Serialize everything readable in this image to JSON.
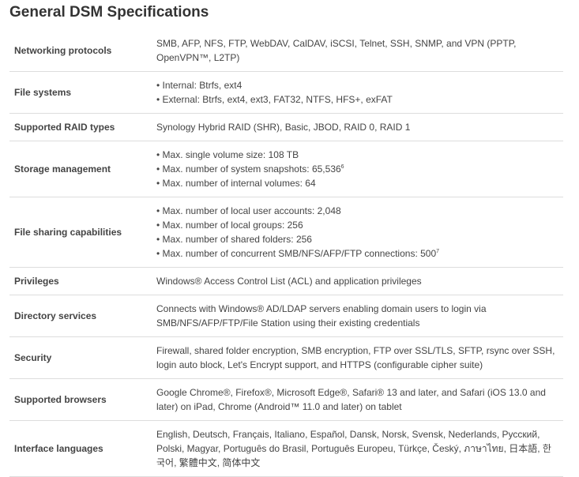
{
  "header": {
    "title": "General DSM Specifications"
  },
  "table": {
    "rows": [
      {
        "label": "Networking protocols",
        "text": "SMB, AFP, NFS, FTP, WebDAV, CalDAV, iSCSI, Telnet, SSH, SNMP, and VPN (PPTP, OpenVPN™, L2TP)"
      },
      {
        "label": "File systems",
        "items": [
          {
            "text": "Internal: Btrfs, ext4"
          },
          {
            "text": "External: Btrfs, ext4, ext3, FAT32, NTFS, HFS+, exFAT"
          }
        ]
      },
      {
        "label": "Supported RAID types",
        "text": "Synology Hybrid RAID (SHR), Basic, JBOD, RAID 0, RAID 1"
      },
      {
        "label": "Storage management",
        "items": [
          {
            "text": "Max. single volume size: 108 TB"
          },
          {
            "text": "Max. number of system snapshots: 65,536",
            "sup": "6"
          },
          {
            "text": "Max. number of internal volumes: 64"
          }
        ]
      },
      {
        "label": "File sharing capabilities",
        "items": [
          {
            "text": "Max. number of local user accounts: 2,048"
          },
          {
            "text": "Max. number of local groups: 256"
          },
          {
            "text": "Max. number of shared folders: 256"
          },
          {
            "text": "Max. number of concurrent SMB/NFS/AFP/FTP connections: 500",
            "sup": "7"
          }
        ]
      },
      {
        "label": "Privileges",
        "text": "Windows® Access Control List (ACL) and application privileges"
      },
      {
        "label": "Directory services",
        "text": "Connects with Windows® AD/LDAP servers enabling domain users to login via SMB/NFS/AFP/FTP/File Station using their existing credentials"
      },
      {
        "label": "Security",
        "text": "Firewall, shared folder encryption, SMB encryption, FTP over SSL/TLS, SFTP, rsync over SSH, login auto block, Let's Encrypt support, and HTTPS (configurable cipher suite)"
      },
      {
        "label": "Supported browsers",
        "text": "Google Chrome®, Firefox®, Microsoft Edge®, Safari® 13 and later, and Safari (iOS 13.0 and later) on iPad, Chrome (Android™ 11.0 and later) on tablet"
      },
      {
        "label": "Interface languages",
        "text": "English, Deutsch, Français, Italiano, Español, Dansk, Norsk, Svensk, Nederlands, Русский, Polski, Magyar, Português do Brasil, Português Europeu, Türkçe, Český, ภาษาไทย, 日本語, 한국어, 繁體中文, 简体中文"
      }
    ]
  }
}
